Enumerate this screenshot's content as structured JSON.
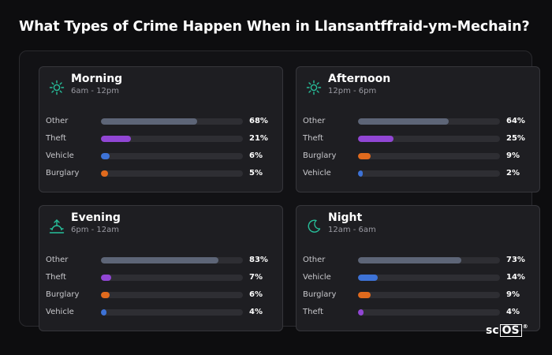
{
  "title": "What Types of Crime Happen When in Llansantffraid-ym-Mechain?",
  "colors": {
    "Other": "#5d6577",
    "Theft": "#9146d4",
    "Vehicle": "#3d72d6",
    "Burglary": "#e06a1d",
    "icon": "#27c09b"
  },
  "chart_data": [
    {
      "type": "bar",
      "title": "Morning",
      "subtitle": "6am - 12pm",
      "icon": "sun-icon",
      "categories": [
        "Other",
        "Theft",
        "Vehicle",
        "Burglary"
      ],
      "values": [
        68,
        21,
        6,
        5
      ],
      "labels": [
        "68%",
        "21%",
        "6%",
        "5%"
      ]
    },
    {
      "type": "bar",
      "title": "Afternoon",
      "subtitle": "12pm - 6pm",
      "icon": "sun-icon",
      "categories": [
        "Other",
        "Theft",
        "Burglary",
        "Vehicle"
      ],
      "values": [
        64,
        25,
        9,
        2
      ],
      "labels": [
        "64%",
        "25%",
        "9%",
        "2%"
      ]
    },
    {
      "type": "bar",
      "title": "Evening",
      "subtitle": "6pm - 12am",
      "icon": "sunset-icon",
      "categories": [
        "Other",
        "Theft",
        "Burglary",
        "Vehicle"
      ],
      "values": [
        83,
        7,
        6,
        4
      ],
      "labels": [
        "83%",
        "7%",
        "6%",
        "4%"
      ]
    },
    {
      "type": "bar",
      "title": "Night",
      "subtitle": "12am - 6am",
      "icon": "moon-icon",
      "categories": [
        "Other",
        "Vehicle",
        "Burglary",
        "Theft"
      ],
      "values": [
        73,
        14,
        9,
        4
      ],
      "labels": [
        "73%",
        "14%",
        "9%",
        "4%"
      ]
    }
  ],
  "logo": {
    "pre": "sc",
    "box": "OS",
    "reg": "®"
  }
}
